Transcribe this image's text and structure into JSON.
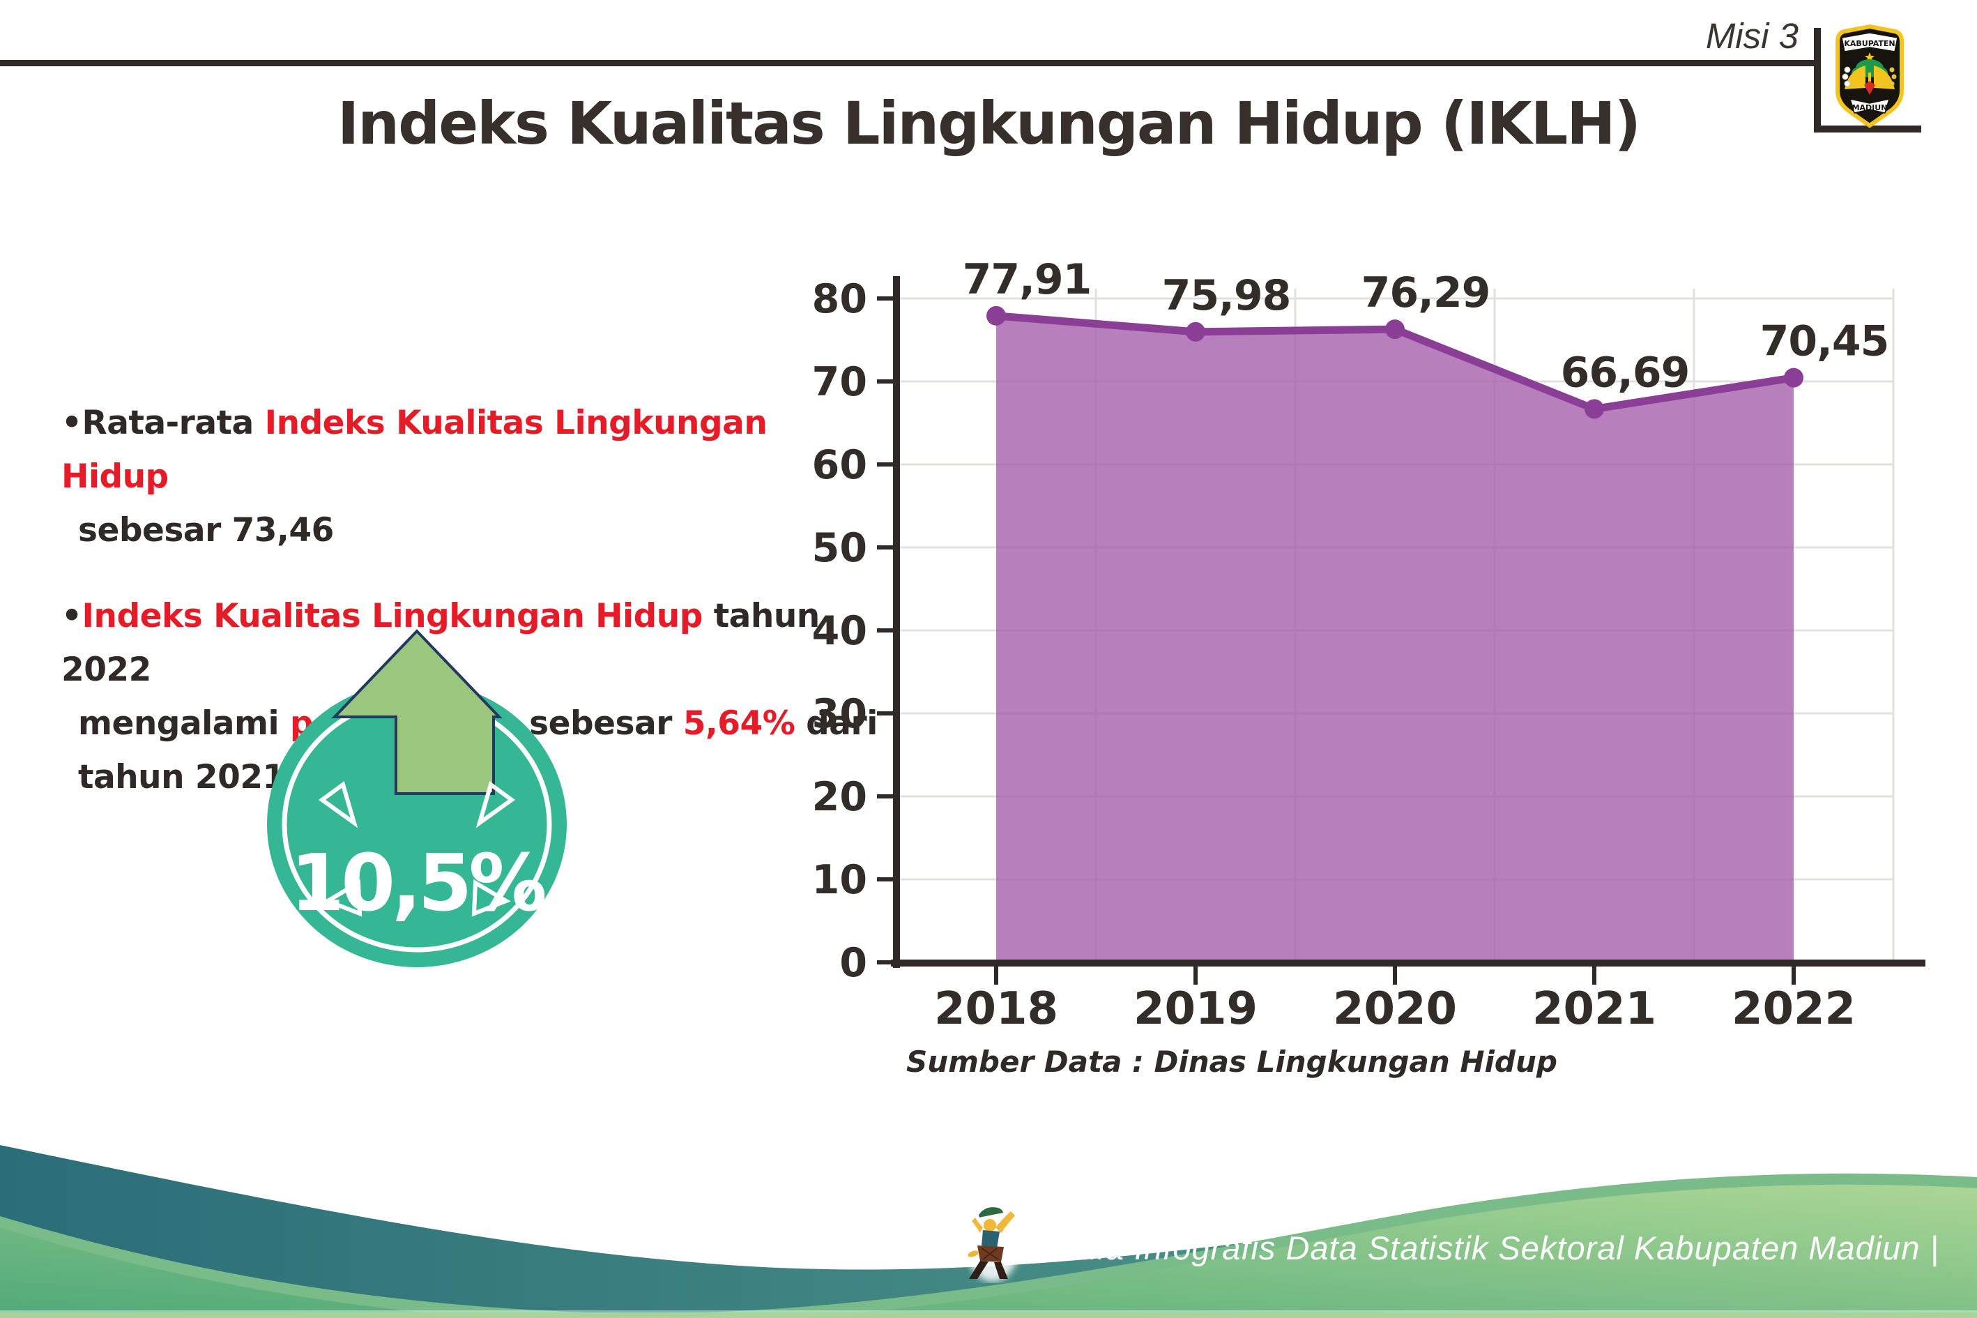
{
  "header": {
    "misi_label": "Misi 3",
    "title": "Indeks Kualitas Lingkungan Hidup (IKLH)"
  },
  "logo": {
    "top_text": "KABUPATEN",
    "bottom_text": "MADIUN"
  },
  "bullets": {
    "b1l1_pre": "•Rata-rata ",
    "b1l1_red": "Indeks Kualitas Lingkungan Hidup",
    "b1l2": "sebesar 73,46",
    "b2l1_bullet": "•",
    "b2l1_red": "Indeks Kualitas Lingkungan Hidup",
    "b2l1_post": " tahun 2022",
    "b2l2_a": "mengalami ",
    "b2l2_b": "peningkatan",
    "b2l2_c": " sebesar ",
    "b2l2_d": "5,64%",
    "b2l2_e": " dari",
    "b2l3": "tahun 2021"
  },
  "badge": {
    "value": "10,5%",
    "circle_color": "#35b694",
    "arrow_color": "#9bc67e"
  },
  "chart_data": {
    "type": "area",
    "title": "",
    "categories": [
      "2018",
      "2019",
      "2020",
      "2021",
      "2022"
    ],
    "values": [
      77.91,
      75.98,
      76.29,
      66.69,
      70.45
    ],
    "point_labels": [
      "77,91",
      "75,98",
      "76,29",
      "66,69",
      "70,45"
    ],
    "y_ticks": [
      0,
      10,
      20,
      30,
      40,
      50,
      60,
      70,
      80
    ],
    "ylim": [
      0,
      85
    ],
    "xlabel": "",
    "ylabel": "",
    "grid": true,
    "legend": false,
    "colors": {
      "line": "#8a3e96",
      "marker": "#8a3e96",
      "fill": "#a35cab",
      "grid": "#e2e0df",
      "axis": "#2f2a28",
      "label": "#332d2a"
    }
  },
  "source_note": "Sumber Data : Dinas Lingkungan Hidup",
  "footer": {
    "text": "Media Infografis Data Statistik Sektoral Kabupaten Madiun |"
  }
}
